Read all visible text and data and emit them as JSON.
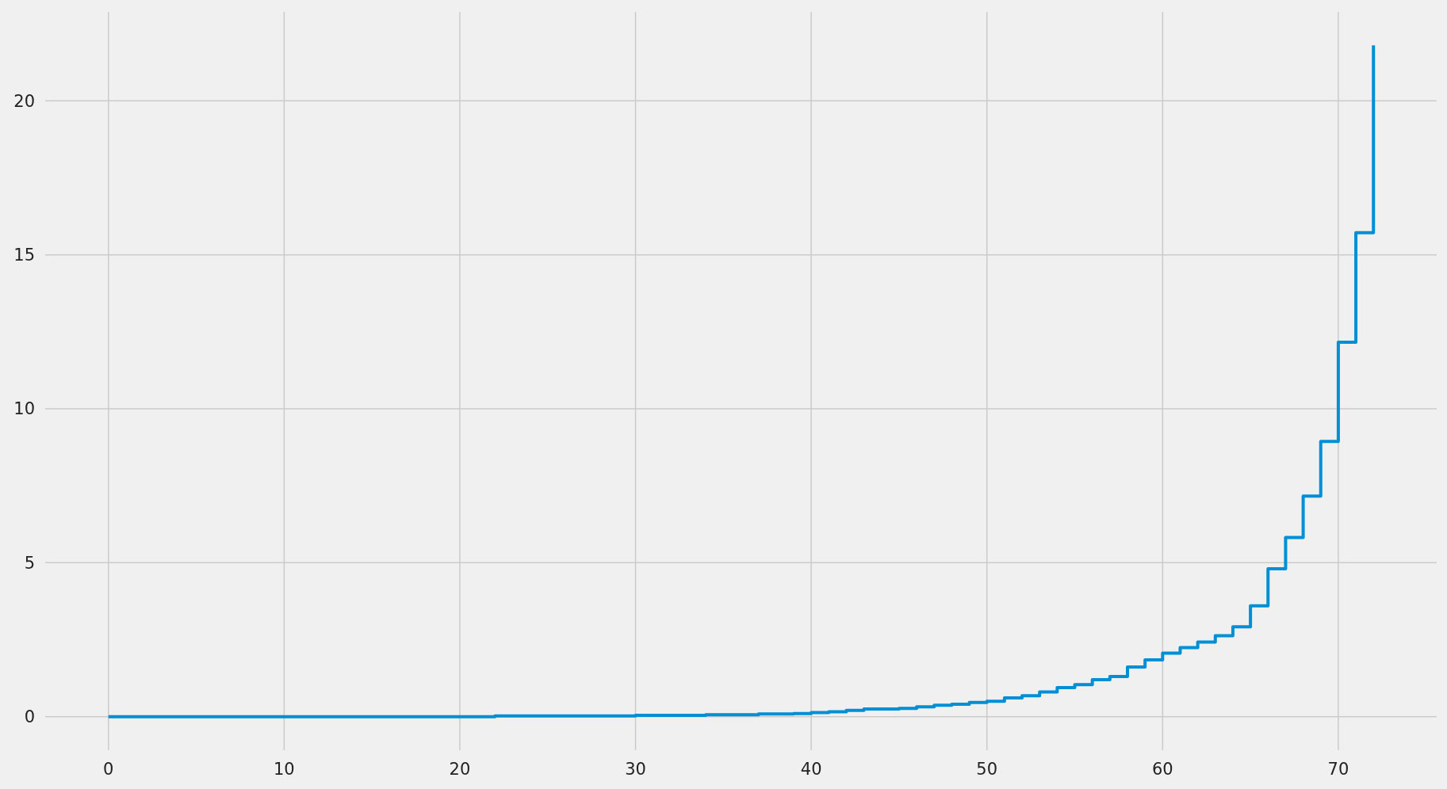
{
  "chart_data": {
    "type": "step",
    "x": [
      0,
      1,
      2,
      3,
      4,
      5,
      6,
      7,
      8,
      9,
      10,
      11,
      12,
      13,
      14,
      15,
      16,
      17,
      18,
      19,
      20,
      21,
      22,
      23,
      24,
      25,
      26,
      27,
      28,
      29,
      30,
      31,
      32,
      33,
      34,
      35,
      36,
      37,
      38,
      39,
      40,
      41,
      42,
      43,
      44,
      45,
      46,
      47,
      48,
      49,
      50,
      51,
      52,
      53,
      54,
      55,
      56,
      57,
      58,
      59,
      60,
      61,
      62,
      63,
      64,
      65,
      66,
      67,
      68,
      69,
      70,
      71,
      72
    ],
    "series": [
      {
        "color": "#008fd5",
        "values": [
          0,
          0,
          0,
          0,
          0,
          0,
          0,
          0,
          0,
          0,
          0,
          0,
          0,
          0,
          0,
          0,
          0,
          0,
          0,
          0,
          0,
          0,
          0.02,
          0.02,
          0.02,
          0.02,
          0.02,
          0.02,
          0.02,
          0.02,
          0.04,
          0.04,
          0.04,
          0.04,
          0.06,
          0.06,
          0.06,
          0.09,
          0.09,
          0.1,
          0.13,
          0.16,
          0.2,
          0.25,
          0.25,
          0.27,
          0.32,
          0.37,
          0.4,
          0.46,
          0.5,
          0.61,
          0.68,
          0.8,
          0.94,
          1.04,
          1.2,
          1.3,
          1.61,
          1.84,
          2.06,
          2.24,
          2.42,
          2.63,
          2.92,
          3.6,
          4.8,
          5.82,
          7.16,
          8.94,
          12.16,
          15.72,
          21.8
        ]
      }
    ],
    "xlim": [
      -3.6,
      75.6
    ],
    "ylim": [
      -1.09,
      22.89
    ],
    "xticks": [
      0,
      10,
      20,
      30,
      40,
      50,
      60,
      70
    ],
    "yticks": [
      0,
      5,
      10,
      15,
      20
    ],
    "grid": true
  }
}
